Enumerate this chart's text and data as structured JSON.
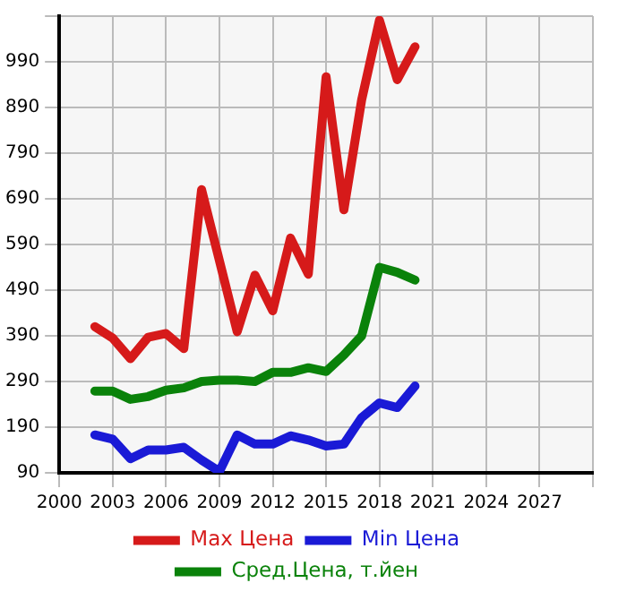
{
  "chart_data": {
    "type": "line",
    "x": [
      2002,
      2003,
      2004,
      2005,
      2006,
      2007,
      2008,
      2009,
      2010,
      2011,
      2012,
      2013,
      2014,
      2015,
      2016,
      2017,
      2018,
      2019,
      2020
    ],
    "series": [
      {
        "name": "Max Цена",
        "color": "#d61a1a",
        "values": [
          410,
          385,
          340,
          387,
          395,
          362,
          710,
          555,
          399,
          523,
          445,
          604,
          525,
          957,
          666,
          907,
          1081,
          951,
          1023
        ]
      },
      {
        "name": "Min Цена",
        "color": "#1a1ad6",
        "values": [
          173,
          164,
          121,
          140,
          140,
          146,
          118,
          93,
          173,
          153,
          153,
          171,
          162,
          149,
          153,
          211,
          243,
          233,
          280
        ]
      },
      {
        "name": "Сред.Цена, т.йен",
        "color": "#0a820a",
        "values": [
          269,
          269,
          251,
          257,
          271,
          276,
          290,
          293,
          293,
          290,
          310,
          310,
          320,
          312,
          348,
          390,
          540,
          529,
          512
        ]
      }
    ],
    "xlim": [
      2000,
      2030
    ],
    "xticks": [
      2000,
      2003,
      2006,
      2009,
      2012,
      2015,
      2018,
      2021,
      2024,
      2027,
      {
        "value": 2030,
        "label": null
      }
    ],
    "ylim": [
      90,
      1090
    ],
    "yticks": [
      90,
      190,
      290,
      390,
      490,
      590,
      690,
      790,
      890,
      990,
      {
        "value": 1090,
        "label": null
      }
    ],
    "grid": true,
    "legend": "bottom",
    "marker": "none",
    "line_style": "solid"
  }
}
